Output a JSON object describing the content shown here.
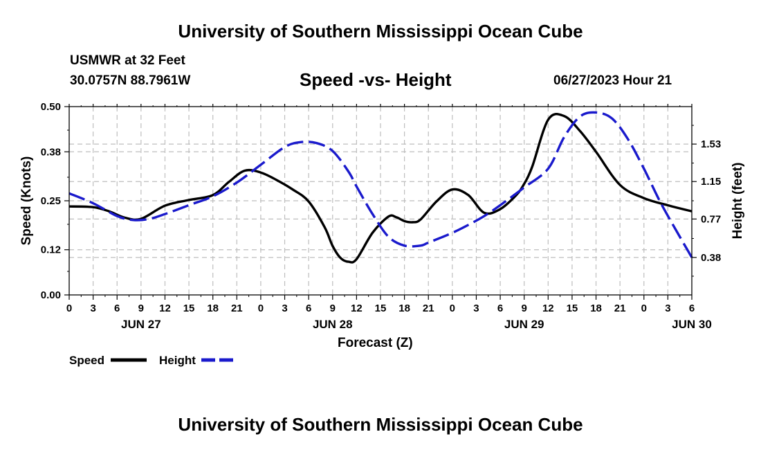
{
  "page": {
    "title_top": "University of Southern Mississippi Ocean Cube",
    "title_bottom": "University of Southern Mississippi Ocean Cube",
    "station": "USMWR at 32 Feet",
    "coords": "30.0757N  88.7961W",
    "chart_title": "Speed -vs- Height",
    "datetime": "06/27/2023 Hour 21"
  },
  "colors": {
    "speed": "#000000",
    "height": "#1a1acc",
    "grid": "#bdbdbd"
  },
  "chart_data": {
    "type": "line",
    "title": "Speed -vs- Height",
    "xlabel": "Forecast (Z)",
    "ylabel_left": "Speed (Knots)",
    "ylabel_right": "Height (feet)",
    "x_range_hours": [
      0,
      78
    ],
    "x_unit": "hours since JUN 27 00Z",
    "x_tick_labels": [
      "0",
      "3",
      "6",
      "9",
      "12",
      "15",
      "18",
      "21",
      "0",
      "3",
      "6",
      "9",
      "12",
      "15",
      "18",
      "21",
      "0",
      "3",
      "6",
      "9",
      "12",
      "15",
      "18",
      "21",
      "0",
      "3",
      "6"
    ],
    "date_labels": [
      {
        "hour": 9,
        "label": "JUN 27"
      },
      {
        "hour": 33,
        "label": "JUN 28"
      },
      {
        "hour": 57,
        "label": "JUN 29"
      },
      {
        "hour": 78,
        "label": "JUN 30"
      }
    ],
    "y_left": {
      "range": [
        0,
        0.5
      ],
      "ticks": [
        "0.00",
        "0.12",
        "0.25",
        "0.38",
        "0.50"
      ]
    },
    "y_right": {
      "range": [
        0,
        1.91
      ],
      "ticks": [
        "0.38",
        "0.77",
        "1.15",
        "1.53"
      ]
    },
    "grid": true,
    "series": [
      {
        "name": "Speed",
        "axis": "left",
        "style": "solid",
        "x": [
          0,
          3,
          5,
          7,
          9,
          12,
          15,
          18,
          20,
          22,
          24,
          26,
          28,
          30,
          32,
          33,
          34,
          35,
          36,
          38,
          40,
          41,
          42,
          43,
          44,
          46,
          48,
          50,
          52,
          54,
          56,
          57,
          58,
          60,
          62,
          64,
          66,
          69,
          72,
          75,
          78
        ],
        "y": [
          0.235,
          0.233,
          0.222,
          0.205,
          0.202,
          0.237,
          0.252,
          0.265,
          0.3,
          0.33,
          0.325,
          0.305,
          0.28,
          0.248,
          0.18,
          0.13,
          0.098,
          0.088,
          0.095,
          0.165,
          0.208,
          0.206,
          0.196,
          0.193,
          0.2,
          0.248,
          0.28,
          0.265,
          0.218,
          0.228,
          0.265,
          0.295,
          0.34,
          0.465,
          0.475,
          0.435,
          0.38,
          0.292,
          0.257,
          0.238,
          0.222
        ]
      },
      {
        "name": "Height",
        "axis": "right",
        "style": "dashed",
        "x": [
          0,
          3,
          6,
          8,
          10,
          12,
          15,
          18,
          21,
          24,
          27,
          29,
          31,
          33,
          35,
          36,
          38,
          40,
          42,
          44,
          45,
          48,
          50,
          52,
          54,
          57,
          60,
          62,
          64,
          66,
          68,
          70,
          72,
          74,
          76,
          78
        ],
        "y": [
          1.03,
          0.93,
          0.8,
          0.76,
          0.77,
          0.82,
          0.91,
          1.0,
          1.14,
          1.32,
          1.5,
          1.55,
          1.54,
          1.46,
          1.25,
          1.1,
          0.82,
          0.59,
          0.5,
          0.5,
          0.53,
          0.63,
          0.71,
          0.8,
          0.91,
          1.09,
          1.28,
          1.6,
          1.81,
          1.85,
          1.79,
          1.58,
          1.28,
          0.95,
          0.66,
          0.38
        ]
      }
    ],
    "legend": [
      {
        "name": "Speed",
        "label": "Speed",
        "style": "solid"
      },
      {
        "name": "Height",
        "label": "Height",
        "style": "dashed"
      }
    ],
    "legend_position": "bottom-left"
  }
}
